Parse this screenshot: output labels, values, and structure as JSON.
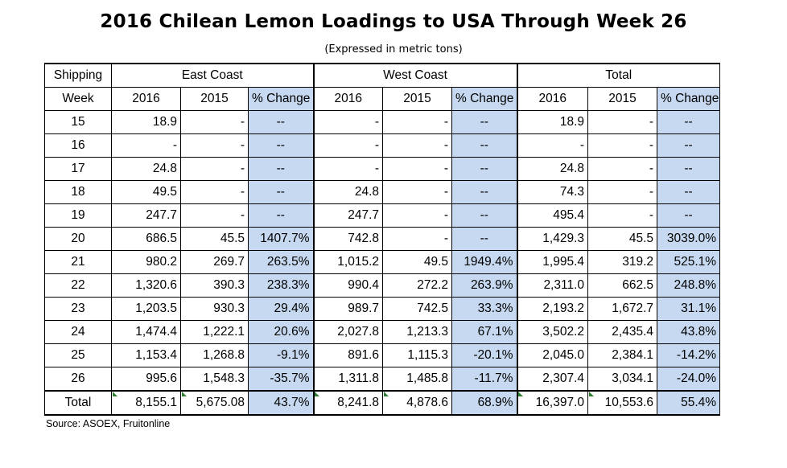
{
  "title": "2016 Chilean Lemon Loadings to USA Through Week 26",
  "subtitle": "(Expressed in metric tons)",
  "header": {
    "shipping": "Shipping",
    "week": "Week",
    "groups": [
      "East Coast",
      "West Coast",
      "Total"
    ],
    "cols": [
      "2016",
      "2015",
      "% Change"
    ]
  },
  "rows": [
    {
      "week": "15",
      "e16": "18.9",
      "e15": "-",
      "ep": "--",
      "w16": "-",
      "w15": "-",
      "wp": "--",
      "t16": "18.9",
      "t15": "-",
      "tp": "--"
    },
    {
      "week": "16",
      "e16": "-",
      "e15": "-",
      "ep": "--",
      "w16": "-",
      "w15": "-",
      "wp": "--",
      "t16": "-",
      "t15": "-",
      "tp": "--"
    },
    {
      "week": "17",
      "e16": "24.8",
      "e15": "-",
      "ep": "--",
      "w16": "-",
      "w15": "-",
      "wp": "--",
      "t16": "24.8",
      "t15": "-",
      "tp": "--"
    },
    {
      "week": "18",
      "e16": "49.5",
      "e15": "-",
      "ep": "--",
      "w16": "24.8",
      "w15": "-",
      "wp": "--",
      "t16": "74.3",
      "t15": "-",
      "tp": "--"
    },
    {
      "week": "19",
      "e16": "247.7",
      "e15": "-",
      "ep": "--",
      "w16": "247.7",
      "w15": "-",
      "wp": "--",
      "t16": "495.4",
      "t15": "-",
      "tp": "--"
    },
    {
      "week": "20",
      "e16": "686.5",
      "e15": "45.5",
      "ep": "1407.7%",
      "w16": "742.8",
      "w15": "-",
      "wp": "--",
      "t16": "1,429.3",
      "t15": "45.5",
      "tp": "3039.0%"
    },
    {
      "week": "21",
      "e16": "980.2",
      "e15": "269.7",
      "ep": "263.5%",
      "w16": "1,015.2",
      "w15": "49.5",
      "wp": "1949.4%",
      "t16": "1,995.4",
      "t15": "319.2",
      "tp": "525.1%"
    },
    {
      "week": "22",
      "e16": "1,320.6",
      "e15": "390.3",
      "ep": "238.3%",
      "w16": "990.4",
      "w15": "272.2",
      "wp": "263.9%",
      "t16": "2,311.0",
      "t15": "662.5",
      "tp": "248.8%"
    },
    {
      "week": "23",
      "e16": "1,203.5",
      "e15": "930.3",
      "ep": "29.4%",
      "w16": "989.7",
      "w15": "742.5",
      "wp": "33.3%",
      "t16": "2,193.2",
      "t15": "1,672.7",
      "tp": "31.1%"
    },
    {
      "week": "24",
      "e16": "1,474.4",
      "e15": "1,222.1",
      "ep": "20.6%",
      "w16": "2,027.8",
      "w15": "1,213.3",
      "wp": "67.1%",
      "t16": "3,502.2",
      "t15": "2,435.4",
      "tp": "43.8%"
    },
    {
      "week": "25",
      "e16": "1,153.4",
      "e15": "1,268.8",
      "ep": "-9.1%",
      "w16": "891.6",
      "w15": "1,115.3",
      "wp": "-20.1%",
      "t16": "2,045.0",
      "t15": "2,384.1",
      "tp": "-14.2%"
    },
    {
      "week": "26",
      "e16": "995.6",
      "e15": "1,548.3",
      "ep": "-35.7%",
      "w16": "1,311.8",
      "w15": "1,485.8",
      "wp": "-11.7%",
      "t16": "2,307.4",
      "t15": "3,034.1",
      "tp": "-24.0%"
    }
  ],
  "total": {
    "week": "Total",
    "e16": "8,155.1",
    "e15": "5,675.08",
    "ep": "43.7%",
    "w16": "8,241.8",
    "w15": "4,878.6",
    "wp": "68.9%",
    "t16": "16,397.0",
    "t15": "10,553.6",
    "tp": "55.4%"
  },
  "source": "Source: ASOEX, Fruitonline",
  "colors": {
    "highlight": "#c6d9f0",
    "marker": "#2e7d32"
  }
}
